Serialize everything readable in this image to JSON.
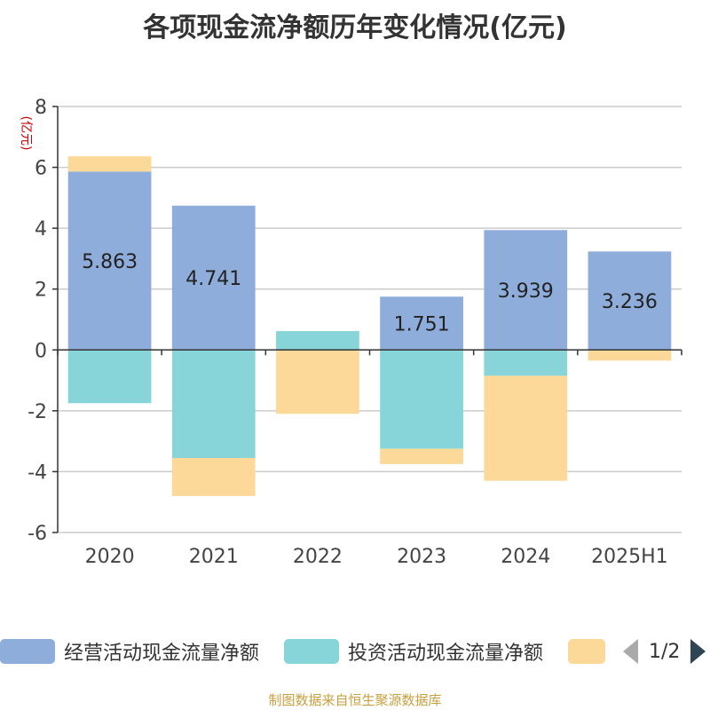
{
  "title": "各项现金流净额历年变化情况(亿元)",
  "y_unit": "(亿元)",
  "source": "制图数据来自恒生聚源数据库",
  "legend": {
    "items": [
      {
        "label": "经营活动现金流量净额",
        "color": "#8eaddb"
      },
      {
        "label": "投资活动现金流量净额",
        "color": "#87d5d8"
      },
      {
        "label": "",
        "color": "#fdd999"
      }
    ],
    "page": "1/2"
  },
  "colors": {
    "axis": "#333333",
    "grid": "#cccccc",
    "tick_label": "#444444",
    "data_label": "#222222"
  },
  "chart_data": {
    "type": "bar",
    "stacked": true,
    "categories": [
      "2020",
      "2021",
      "2022",
      "2023",
      "2024",
      "2025H1"
    ],
    "ylim": [
      -6,
      8
    ],
    "yticks": [
      -6,
      -4,
      -2,
      0,
      2,
      4,
      6,
      8
    ],
    "grid": true,
    "legend_position": "bottom",
    "series": [
      {
        "name": "经营活动现金流量净额",
        "values": [
          5.863,
          4.741,
          -0.0,
          1.751,
          3.939,
          3.236
        ],
        "labels": [
          "5.863",
          "4.741",
          "",
          "1.751",
          "3.939",
          "3.236"
        ]
      },
      {
        "name": "投资活动现金流量净额",
        "values": [
          -1.75,
          -3.55,
          0.62,
          -3.25,
          -0.85,
          0.0
        ],
        "labels": [
          "",
          "",
          "",
          "",
          "",
          ""
        ]
      },
      {
        "name": "",
        "values": [
          0.5,
          -1.25,
          -2.1,
          -0.5,
          -3.45,
          -0.35
        ],
        "labels": [
          "",
          "",
          "",
          "",
          "",
          ""
        ]
      }
    ]
  }
}
